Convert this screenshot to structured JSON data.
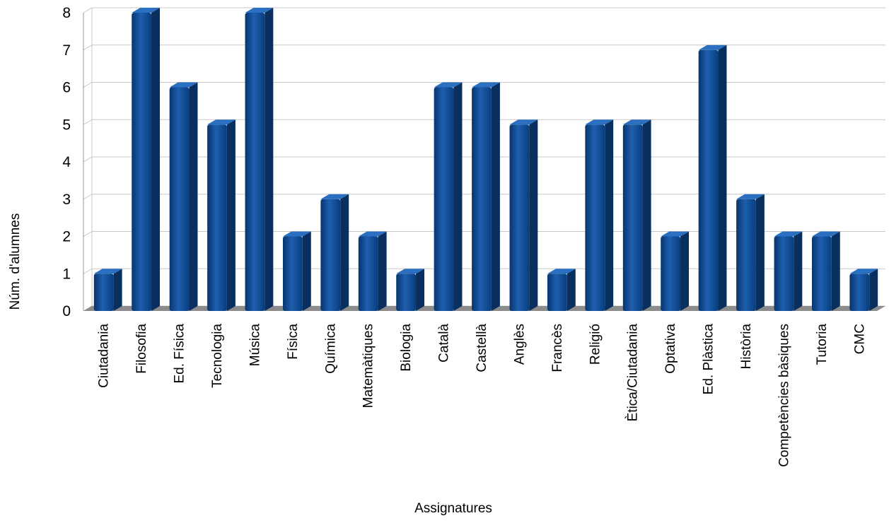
{
  "chart_data": {
    "type": "bar",
    "title": "",
    "xlabel": "Assignatures",
    "ylabel": "Núm. d'alumnes",
    "ylim": [
      0,
      8
    ],
    "yticks": [
      0,
      1,
      2,
      3,
      4,
      5,
      6,
      7,
      8
    ],
    "grid": true,
    "legend": "none",
    "style": "3d",
    "categories": [
      "Ciutadania",
      "Filosofia",
      "Ed. Física",
      "Tecnologia",
      "Música",
      "Física",
      "Química",
      "Matemàtiques",
      "Biologia",
      "Català",
      "Castellà",
      "Anglès",
      "Francès",
      "Religió",
      "Ètica/Ciutadania",
      "Optativa",
      "Ed. Plàstica",
      "Història",
      "Competències bàsiques",
      "Tutoria",
      "CMC"
    ],
    "values": [
      1,
      8,
      6,
      5,
      8,
      2,
      3,
      2,
      1,
      6,
      6,
      5,
      1,
      5,
      5,
      2,
      7,
      3,
      2,
      2,
      1
    ],
    "colors": {
      "bar_front": "#0a4b96",
      "bar_side": "#082f5e",
      "bar_top": "#2a6fc0",
      "floor": "#8c8c8c",
      "gridline": "#c8c8c8"
    }
  }
}
